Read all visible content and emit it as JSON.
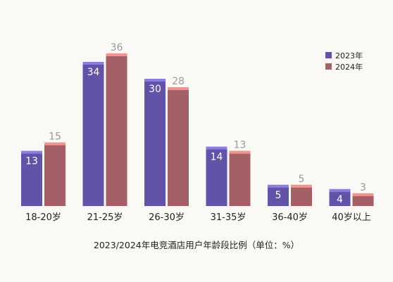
{
  "chart_data": {
    "type": "bar",
    "title": "2023/2024年电竞酒店用户年龄段比例（单位：%）",
    "categories": [
      "18-20岁",
      "21-25岁",
      "26-30岁",
      "31-35岁",
      "36-40岁",
      "40岁以上"
    ],
    "series": [
      {
        "name": "2023年",
        "values": [
          13,
          34,
          30,
          14,
          5,
          4
        ],
        "color": "#6252a8",
        "cap_color": "#8a7ee0",
        "label_color": "#ffffff"
      },
      {
        "name": "2024年",
        "values": [
          15,
          36,
          28,
          13,
          5,
          3
        ],
        "color": "#a36066",
        "cap_color": "#f0948f",
        "label_color": "#9a9a9a"
      }
    ],
    "ylim": [
      0,
      40
    ],
    "grid": false,
    "legend_position": "top-right",
    "xlabel": "",
    "ylabel": ""
  }
}
